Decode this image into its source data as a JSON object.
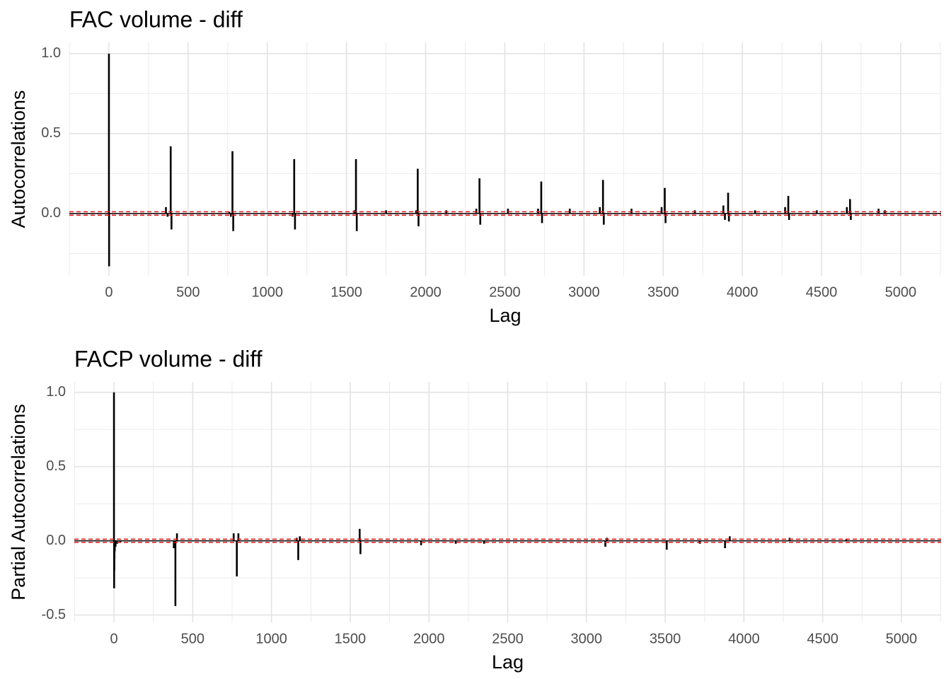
{
  "chart_data": [
    {
      "type": "bar",
      "title": "FAC volume - diff",
      "xlabel": "Lag",
      "ylabel": "Autocorrelations",
      "x": [
        0,
        1,
        360,
        370,
        390,
        395,
        760,
        770,
        780,
        785,
        1160,
        1170,
        1175,
        1550,
        1560,
        1565,
        1750,
        1940,
        1950,
        1955,
        2130,
        2320,
        2340,
        2345,
        2520,
        2710,
        2730,
        2735,
        2910,
        3100,
        3120,
        3125,
        3300,
        3490,
        3510,
        3515,
        3700,
        3880,
        3890,
        3910,
        3915,
        4080,
        4270,
        4290,
        4295,
        4470,
        4660,
        4680,
        4685,
        4860,
        4900
      ],
      "values": [
        1.0,
        -0.33,
        0.04,
        -0.02,
        0.42,
        -0.1,
        0.01,
        -0.02,
        0.39,
        -0.11,
        -0.02,
        0.34,
        -0.1,
        0.02,
        0.34,
        -0.11,
        0.02,
        0.02,
        0.28,
        -0.08,
        0.02,
        0.03,
        0.22,
        -0.07,
        0.03,
        0.03,
        0.2,
        -0.06,
        0.03,
        0.04,
        0.21,
        -0.07,
        0.03,
        0.04,
        0.16,
        -0.06,
        0.02,
        0.05,
        -0.04,
        0.13,
        -0.05,
        0.02,
        0.04,
        0.11,
        -0.04,
        0.02,
        0.04,
        0.09,
        -0.04,
        0.03,
        0.02
      ],
      "color": "#000000",
      "conf_limits": [
        0.011,
        -0.011
      ],
      "conf_color": "#e41a1c",
      "xlim": [
        -250,
        5255
      ],
      "xticks": [
        0,
        500,
        1000,
        1500,
        2000,
        2500,
        3000,
        3500,
        4000,
        4500,
        5000
      ],
      "ylim": [
        -0.39,
        1.07
      ],
      "yticks": [
        {
          "value": 0,
          "label": "0.0"
        },
        0.5,
        {
          "value": 1,
          "label": "1.0"
        }
      ],
      "grid": true
    },
    {
      "type": "bar",
      "title": "FACP volume - diff",
      "xlabel": "Lag",
      "ylabel": "Partial Autocorrelations",
      "x": [
        0,
        1,
        2,
        3,
        5,
        10,
        20,
        40,
        100,
        380,
        390,
        400,
        760,
        780,
        790,
        1160,
        1170,
        1180,
        1560,
        1565,
        1950,
        2170,
        2350,
        3120,
        3130,
        3510,
        3720,
        3880,
        3910,
        4290,
        4650
      ],
      "values": [
        1.0,
        -0.32,
        -0.2,
        -0.12,
        -0.07,
        -0.04,
        -0.02,
        -0.01,
        -0.005,
        -0.05,
        -0.44,
        0.05,
        0.05,
        -0.24,
        0.05,
        0.02,
        -0.13,
        0.03,
        0.08,
        -0.09,
        -0.03,
        -0.02,
        -0.02,
        -0.04,
        0.02,
        -0.06,
        -0.02,
        -0.05,
        0.03,
        0.02,
        0.01
      ],
      "color": "#000000",
      "conf_limits": [
        0.011,
        -0.011
      ],
      "conf_color": "#e41a1c",
      "xlim": [
        -252,
        5252
      ],
      "xticks": [
        0,
        500,
        1000,
        1500,
        2000,
        2500,
        3000,
        3500,
        4000,
        4500,
        5000
      ],
      "ylim": [
        -0.55,
        1.07
      ],
      "yticks": [
        -0.5,
        {
          "value": 0,
          "label": "0.0"
        },
        0.5,
        {
          "value": 1,
          "label": "1.0"
        }
      ],
      "grid": true
    }
  ]
}
